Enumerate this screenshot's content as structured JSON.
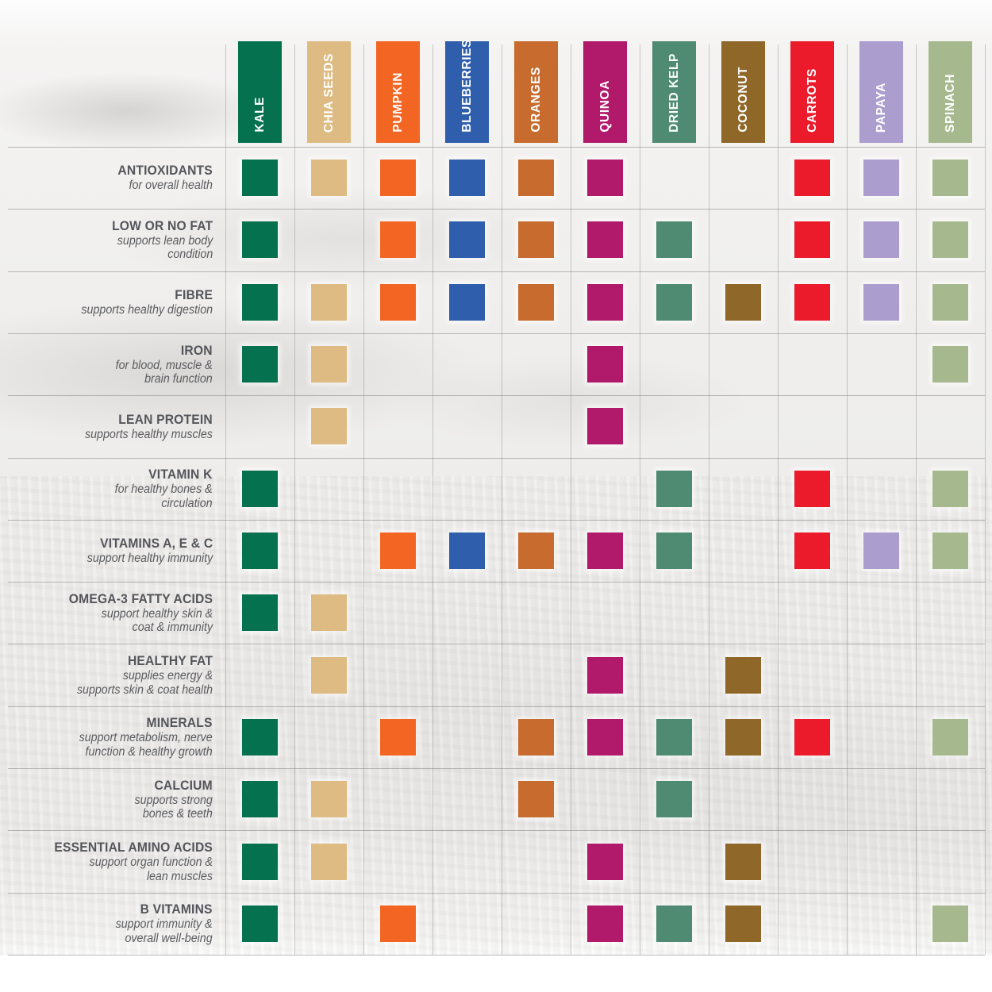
{
  "matrix": {
    "columns": [
      {
        "label": "KALE",
        "color": "#05714F"
      },
      {
        "label": "CHIA SEEDS",
        "color": "#DDBB82"
      },
      {
        "label": "PUMPKIN",
        "color": "#F26522"
      },
      {
        "label": "BLUEBERRIES",
        "color": "#2E5EAC"
      },
      {
        "label": "ORANGES",
        "color": "#C76B2F"
      },
      {
        "label": "QUINOA",
        "color": "#B1196B"
      },
      {
        "label": "DRIED KELP",
        "color": "#4F8B72"
      },
      {
        "label": "COCONUT",
        "color": "#8F6728"
      },
      {
        "label": "CARROTS",
        "color": "#EC1B2B"
      },
      {
        "label": "PAPAYA",
        "color": "#AB9DCE"
      },
      {
        "label": "SPINACH",
        "color": "#A6B98E"
      }
    ],
    "rows": [
      {
        "label": "ANTIOXIDANTS",
        "description": "for overall health",
        "cells": [
          1,
          1,
          1,
          1,
          1,
          1,
          0,
          0,
          1,
          1,
          1
        ]
      },
      {
        "label": "LOW OR NO FAT",
        "description": "supports lean body\ncondition",
        "cells": [
          1,
          0,
          1,
          1,
          1,
          1,
          1,
          0,
          1,
          1,
          1
        ]
      },
      {
        "label": "FIBRE",
        "description": "supports healthy digestion",
        "cells": [
          1,
          1,
          1,
          1,
          1,
          1,
          1,
          1,
          1,
          1,
          1
        ]
      },
      {
        "label": "IRON",
        "description": "for blood, muscle &\nbrain function",
        "cells": [
          1,
          1,
          0,
          0,
          0,
          1,
          0,
          0,
          0,
          0,
          1
        ]
      },
      {
        "label": "LEAN PROTEIN",
        "description": "supports healthy muscles",
        "cells": [
          0,
          1,
          0,
          0,
          0,
          1,
          0,
          0,
          0,
          0,
          0
        ]
      },
      {
        "label": "VITAMIN K",
        "description": "for healthy bones &\ncirculation",
        "cells": [
          1,
          0,
          0,
          0,
          0,
          0,
          1,
          0,
          1,
          0,
          1
        ]
      },
      {
        "label": "VITAMINS A, E & C",
        "description": "support healthy immunity",
        "cells": [
          1,
          0,
          1,
          1,
          1,
          1,
          1,
          0,
          1,
          1,
          1
        ]
      },
      {
        "label": "OMEGA-3 FATTY ACIDS",
        "description": "support healthy skin &\ncoat & immunity",
        "cells": [
          1,
          1,
          0,
          0,
          0,
          0,
          0,
          0,
          0,
          0,
          0
        ]
      },
      {
        "label": "HEALTHY FAT",
        "description": "supplies energy &\nsupports skin & coat health",
        "cells": [
          0,
          1,
          0,
          0,
          0,
          1,
          0,
          1,
          0,
          0,
          0
        ]
      },
      {
        "label": "MINERALS",
        "description": "support metabolism, nerve\nfunction & healthy growth",
        "cells": [
          1,
          0,
          1,
          0,
          1,
          1,
          1,
          1,
          1,
          0,
          1
        ]
      },
      {
        "label": "CALCIUM",
        "description": "supports strong\nbones & teeth",
        "cells": [
          1,
          1,
          0,
          0,
          1,
          0,
          1,
          0,
          0,
          0,
          0
        ]
      },
      {
        "label": "ESSENTIAL AMINO ACIDS",
        "description": "support organ function &\nlean muscles",
        "cells": [
          1,
          1,
          0,
          0,
          0,
          1,
          0,
          1,
          0,
          0,
          0
        ]
      },
      {
        "label": "B VITAMINS",
        "description": "support immunity &\noverall well-being",
        "cells": [
          1,
          0,
          1,
          0,
          0,
          1,
          1,
          1,
          0,
          0,
          1
        ]
      }
    ]
  },
  "chart_data": {
    "type": "heatmap",
    "title": "",
    "x_categories": [
      "KALE",
      "CHIA SEEDS",
      "PUMPKIN",
      "BLUEBERRIES",
      "ORANGES",
      "QUINOA",
      "DRIED KELP",
      "COCONUT",
      "CARROTS",
      "PAPAYA",
      "SPINACH"
    ],
    "y_categories": [
      "ANTIOXIDANTS",
      "LOW OR NO FAT",
      "FIBRE",
      "IRON",
      "LEAN PROTEIN",
      "VITAMIN K",
      "VITAMINS A, E & C",
      "OMEGA-3 FATTY ACIDS",
      "HEALTHY FAT",
      "MINERALS",
      "CALCIUM",
      "ESSENTIAL AMINO ACIDS",
      "B VITAMINS"
    ],
    "matrix": [
      [
        1,
        1,
        1,
        1,
        1,
        1,
        0,
        0,
        1,
        1,
        1
      ],
      [
        1,
        0,
        1,
        1,
        1,
        1,
        1,
        0,
        1,
        1,
        1
      ],
      [
        1,
        1,
        1,
        1,
        1,
        1,
        1,
        1,
        1,
        1,
        1
      ],
      [
        1,
        1,
        0,
        0,
        0,
        1,
        0,
        0,
        0,
        0,
        1
      ],
      [
        0,
        1,
        0,
        0,
        0,
        1,
        0,
        0,
        0,
        0,
        0
      ],
      [
        1,
        0,
        0,
        0,
        0,
        0,
        1,
        0,
        1,
        0,
        1
      ],
      [
        1,
        0,
        1,
        1,
        1,
        1,
        1,
        0,
        1,
        1,
        1
      ],
      [
        1,
        1,
        0,
        0,
        0,
        0,
        0,
        0,
        0,
        0,
        0
      ],
      [
        0,
        1,
        0,
        0,
        0,
        1,
        0,
        1,
        0,
        0,
        0
      ],
      [
        1,
        0,
        1,
        0,
        1,
        1,
        1,
        1,
        1,
        0,
        1
      ],
      [
        1,
        1,
        0,
        0,
        1,
        0,
        1,
        0,
        0,
        0,
        0
      ],
      [
        1,
        1,
        0,
        0,
        0,
        1,
        0,
        1,
        0,
        0,
        0
      ],
      [
        1,
        0,
        1,
        0,
        0,
        1,
        1,
        1,
        0,
        0,
        1
      ]
    ],
    "cell_colors_by_column": [
      "#05714F",
      "#DDBB82",
      "#F26522",
      "#2E5EAC",
      "#C76B2F",
      "#B1196B",
      "#4F8B72",
      "#8F6728",
      "#EC1B2B",
      "#AB9DCE",
      "#A6B98E"
    ],
    "value_meaning": "1 = ingredient provides this nutrient (colored square shown), 0 = empty cell",
    "grid": true,
    "legend_position": "none"
  },
  "colors": {
    "grid_line": "#7d7b79",
    "label_text": "#54555a",
    "bar_text": "#ffffff",
    "background": "#eeedec"
  }
}
